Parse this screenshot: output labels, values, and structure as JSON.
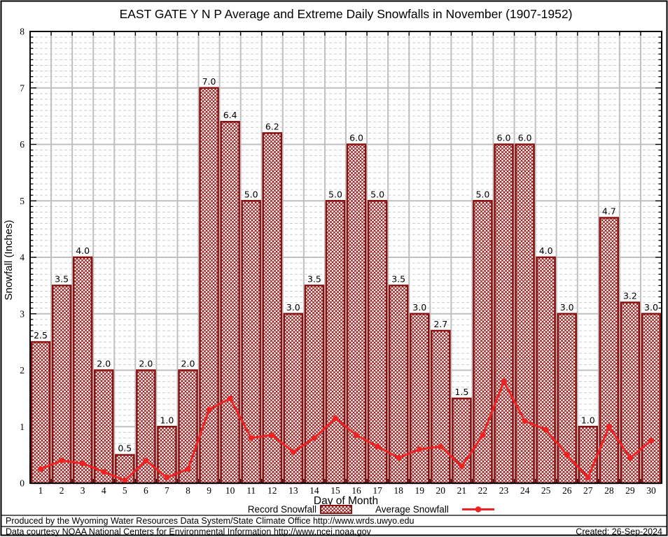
{
  "title": "EAST GATE Y N P Average and Extreme Daily Snowfalls in November (1907-1952)",
  "ylabel": "Snowfall (Inches)",
  "xlabel": "Day of Month",
  "legend": {
    "record_label": "Record Snowfall",
    "average_label": "Average Snowfall"
  },
  "footer": {
    "line1": "Produced by the Wyoming Water Resources Data System/State Climate Office http://www.wrds.uwyo.edu",
    "line2": "Data courtesy NOAA National Centers for Environmental Information http://www.ncei.noaa.gov",
    "created": "Created: 26-Sep-2024"
  },
  "colors": {
    "bar": "#8B1010",
    "line": "#EE2222",
    "grid_major": "#bfbfbf",
    "grid_minor": "#cccccc",
    "frame": "#000000"
  },
  "chart_data": {
    "type": "bar",
    "title": "EAST GATE Y N P Average and Extreme Daily Snowfalls in November (1907-1952)",
    "xlabel": "Day of Month",
    "ylabel": "Snowfall (Inches)",
    "ylim": [
      0,
      8
    ],
    "y_major_step": 1,
    "y_minor_step": 0.1,
    "grid": true,
    "legend_position": "bottom",
    "categories": [
      1,
      2,
      3,
      4,
      5,
      6,
      7,
      8,
      9,
      10,
      11,
      12,
      13,
      14,
      15,
      16,
      17,
      18,
      19,
      20,
      21,
      22,
      23,
      24,
      25,
      26,
      27,
      28,
      29,
      30
    ],
    "series": [
      {
        "name": "Record Snowfall",
        "type": "bar",
        "values": [
          2.5,
          3.5,
          4.0,
          2.0,
          0.5,
          2.0,
          1.0,
          2.0,
          7.0,
          6.4,
          5.0,
          6.2,
          3.0,
          3.5,
          5.0,
          6.0,
          5.0,
          3.5,
          3.0,
          2.7,
          1.5,
          5.0,
          6.0,
          6.0,
          4.0,
          3.0,
          1.0,
          4.7,
          3.2,
          3.0
        ]
      },
      {
        "name": "Average Snowfall",
        "type": "line",
        "values": [
          0.25,
          0.4,
          0.35,
          0.2,
          0.05,
          0.4,
          0.1,
          0.25,
          1.3,
          1.5,
          0.8,
          0.85,
          0.55,
          0.8,
          1.15,
          0.85,
          0.65,
          0.45,
          0.6,
          0.65,
          0.3,
          0.85,
          1.8,
          1.1,
          0.95,
          0.5,
          0.1,
          1.0,
          0.45,
          0.75
        ]
      }
    ]
  }
}
